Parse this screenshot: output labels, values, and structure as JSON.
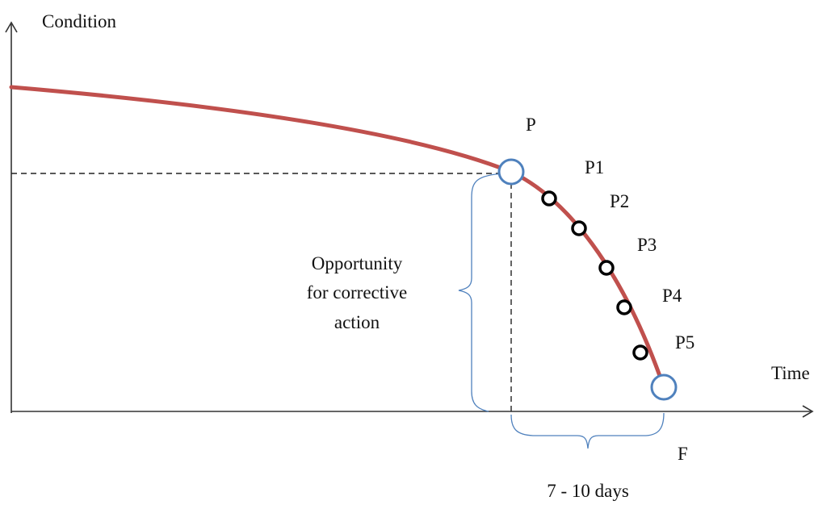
{
  "axes": {
    "y_label": "Condition",
    "x_label": "Time"
  },
  "points": {
    "P": "P",
    "P1": "P1",
    "P2": "P2",
    "P3": "P3",
    "P4": "P4",
    "P5": "P5",
    "F": "F"
  },
  "annotations": {
    "opportunity_line1": "Opportunity",
    "opportunity_line2": "for corrective",
    "opportunity_line3": "action",
    "interval": "7 - 10 days"
  },
  "colors": {
    "curve": "#c0504d",
    "endpoint_circle": "#4f81bd",
    "brace": "#4f81bd",
    "axis": "#333333",
    "marker": "#000000"
  }
}
